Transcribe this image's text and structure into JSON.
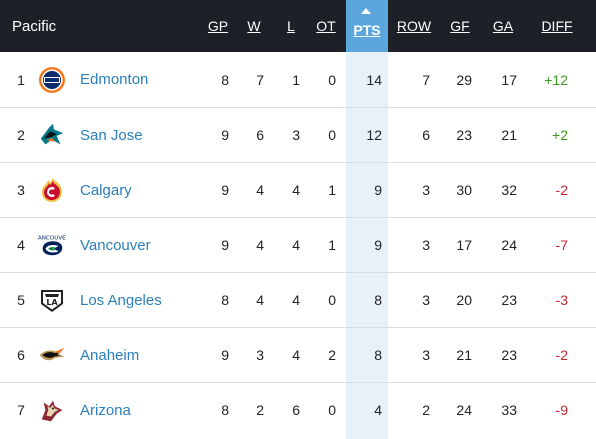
{
  "header": {
    "division": "Pacific",
    "columns": {
      "gp": "GP",
      "w": "W",
      "l": "L",
      "ot": "OT",
      "pts": "PTS",
      "row": "ROW",
      "gf": "GF",
      "ga": "GA",
      "diff": "DIFF"
    },
    "sorted_column": "PTS"
  },
  "colors": {
    "header_bg": "#1d2127",
    "sorted_header": "#5aa6dd",
    "sorted_band": "#e7f1fa",
    "link": "#2a7fbd",
    "positive": "#3a9b1f",
    "negative": "#c0282d"
  },
  "teams": [
    {
      "rank": "1",
      "name": "Edmonton",
      "logo": "oilers-logo-icon",
      "gp": "8",
      "w": "7",
      "l": "1",
      "ot": "0",
      "pts": "14",
      "row": "7",
      "gf": "29",
      "ga": "17",
      "diff": "+12"
    },
    {
      "rank": "2",
      "name": "San Jose",
      "logo": "sharks-logo-icon",
      "gp": "9",
      "w": "6",
      "l": "3",
      "ot": "0",
      "pts": "12",
      "row": "6",
      "gf": "23",
      "ga": "21",
      "diff": "+2"
    },
    {
      "rank": "3",
      "name": "Calgary",
      "logo": "flames-logo-icon",
      "gp": "9",
      "w": "4",
      "l": "4",
      "ot": "1",
      "pts": "9",
      "row": "3",
      "gf": "30",
      "ga": "32",
      "diff": "-2"
    },
    {
      "rank": "4",
      "name": "Vancouver",
      "logo": "canucks-logo-icon",
      "gp": "9",
      "w": "4",
      "l": "4",
      "ot": "1",
      "pts": "9",
      "row": "3",
      "gf": "17",
      "ga": "24",
      "diff": "-7"
    },
    {
      "rank": "5",
      "name": "Los Angeles",
      "logo": "kings-logo-icon",
      "gp": "8",
      "w": "4",
      "l": "4",
      "ot": "0",
      "pts": "8",
      "row": "3",
      "gf": "20",
      "ga": "23",
      "diff": "-3"
    },
    {
      "rank": "6",
      "name": "Anaheim",
      "logo": "ducks-logo-icon",
      "gp": "9",
      "w": "3",
      "l": "4",
      "ot": "2",
      "pts": "8",
      "row": "3",
      "gf": "21",
      "ga": "23",
      "diff": "-2"
    },
    {
      "rank": "7",
      "name": "Arizona",
      "logo": "coyotes-logo-icon",
      "gp": "8",
      "w": "2",
      "l": "6",
      "ot": "0",
      "pts": "4",
      "row": "2",
      "gf": "24",
      "ga": "33",
      "diff": "-9"
    }
  ]
}
